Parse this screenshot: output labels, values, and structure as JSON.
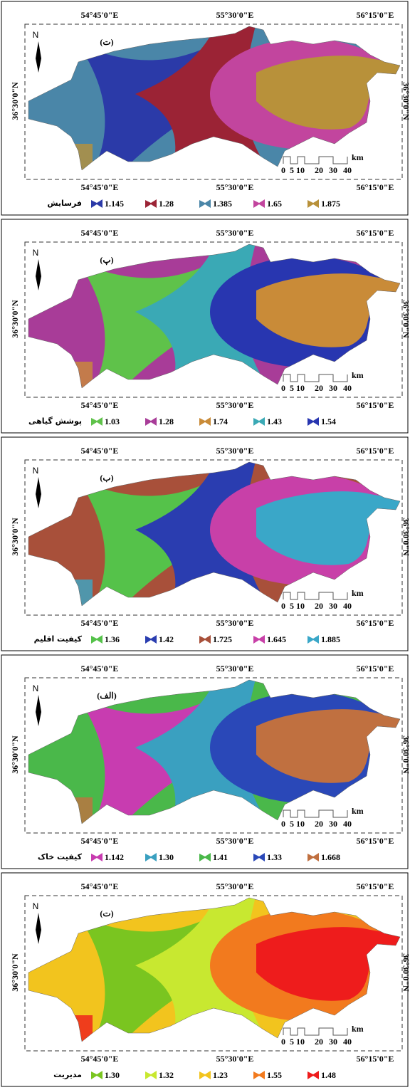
{
  "panels": [
    {
      "label": "(ت)",
      "top_labels": [
        "54°45'0\"E",
        "55°30'0\"E",
        "56°15'0\"E"
      ],
      "bottom_labels": [
        "54°45'0\"E",
        "55°30'0\"E",
        "56°15'0\"E"
      ],
      "left_label": "36°30'0\"N",
      "right_label": "36°30'0\"N",
      "north": "N",
      "scale_labels": [
        "0",
        "5",
        "10",
        "20",
        "30",
        "40"
      ],
      "scale_unit": "km",
      "legend_title": "فرسایش",
      "legend": [
        {
          "label": "1.145",
          "color": "#2b3aa8"
        },
        {
          "label": "1.28",
          "color": "#9b2335"
        },
        {
          "label": "1.385",
          "color": "#4a86a8"
        },
        {
          "label": "1.65",
          "color": "#c2459e"
        },
        {
          "label": "1.875",
          "color": "#b8913a"
        }
      ]
    },
    {
      "label": "(پ)",
      "top_labels": [
        "54°45'0\"E",
        "55°30'0\"E",
        "56°15'0\"E"
      ],
      "bottom_labels": [
        "54°45'0\"E",
        "55°30'0\"E",
        "56°15'0\"E"
      ],
      "left_label": "36°30'0\"N",
      "right_label": "36°30'0\"N",
      "north": "N",
      "scale_labels": [
        "0",
        "5",
        "10",
        "20",
        "30",
        "40"
      ],
      "scale_unit": "km",
      "legend_title": "پوشش گیاهی",
      "legend": [
        {
          "label": "1.03",
          "color": "#5fc24a"
        },
        {
          "label": "1.28",
          "color": "#a83c98"
        },
        {
          "label": "1.74",
          "color": "#c98b38"
        },
        {
          "label": "1.43",
          "color": "#3aa9b5"
        },
        {
          "label": "1.54",
          "color": "#2836b0"
        }
      ]
    },
    {
      "label": "(ب)",
      "top_labels": [
        "54°45'0\"E",
        "55°30'0\"E",
        "56°15'0\"E"
      ],
      "bottom_labels": [
        "54°45'0\"E",
        "55°30'0\"E",
        "56°15'0\"E"
      ],
      "left_label": "36°30'0\"N",
      "right_label": "36°30'0\"N",
      "north": "N",
      "scale_labels": [
        "0",
        "5",
        "10",
        "20",
        "30",
        "40"
      ],
      "scale_unit": "km",
      "legend_title": "کیفیت اقلیم",
      "legend": [
        {
          "label": "1.36",
          "color": "#55c24a"
        },
        {
          "label": "1.42",
          "color": "#2a3db0"
        },
        {
          "label": "1.725",
          "color": "#a8503a"
        },
        {
          "label": "1.645",
          "color": "#c840a8"
        },
        {
          "label": "1.885",
          "color": "#3aa7c8"
        }
      ]
    },
    {
      "label": "(الف)",
      "top_labels": [
        "54°45'0\"E",
        "55°30'0\"E",
        "56°15'0\"E"
      ],
      "bottom_labels": [
        "54°45'0\"E",
        "55°30'0\"E",
        "56°15'0\"E"
      ],
      "left_label": "36°30'0\"N",
      "right_label": "36°30'0\"N",
      "north": "N",
      "scale_labels": [
        "0",
        "5",
        "10",
        "20",
        "30",
        "40"
      ],
      "scale_unit": "km",
      "legend_title": "کیفیت خاک",
      "legend": [
        {
          "label": "1.142",
          "color": "#c83cb0"
        },
        {
          "label": "1.30",
          "color": "#3aa0c0"
        },
        {
          "label": "1.41",
          "color": "#4ab84a"
        },
        {
          "label": "1.33",
          "color": "#2a48b8"
        },
        {
          "label": "1.668",
          "color": "#c07040"
        }
      ]
    },
    {
      "label": "(ت)",
      "top_labels": [
        "54°45'0\"E",
        "55°30'0\"E",
        "56°15'0\"E"
      ],
      "bottom_labels": [
        "54°45'0\"E",
        "55°30'0\"E",
        "56°15'0\"E"
      ],
      "left_label": "36°30'0\"N",
      "right_label": "36°30'0\"N",
      "north": "N",
      "scale_labels": [
        "0",
        "5",
        "10",
        "20",
        "30",
        "40"
      ],
      "scale_unit": "km",
      "legend_title": "مدیریت",
      "legend": [
        {
          "label": "1.30",
          "color": "#7ac520"
        },
        {
          "label": "1.32",
          "color": "#c8e830"
        },
        {
          "label": "1.23",
          "color": "#f2c41e"
        },
        {
          "label": "1.55",
          "color": "#f27a1e"
        },
        {
          "label": "1.48",
          "color": "#ee1c1c"
        }
      ]
    }
  ]
}
